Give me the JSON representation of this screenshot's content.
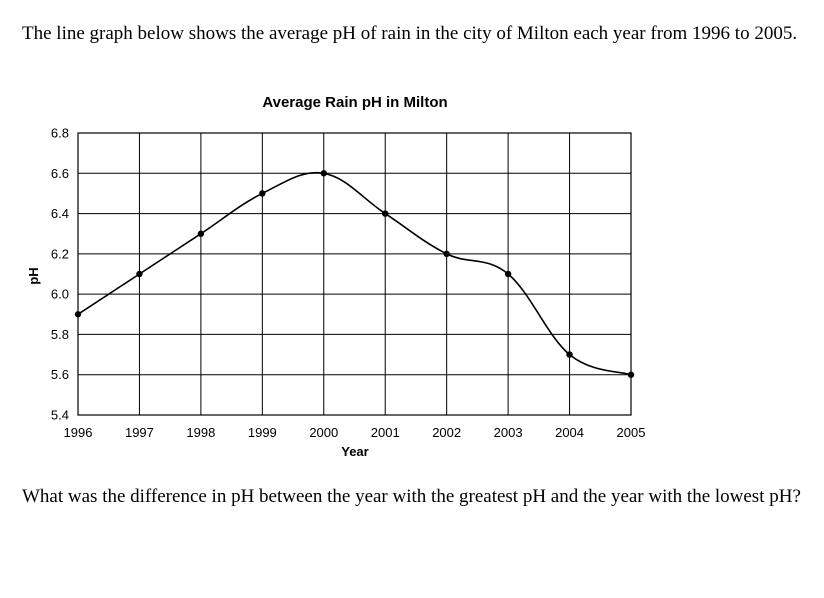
{
  "question": {
    "intro": "The line graph below shows the average pH of rain in the city of Milton each year from 1996 to 2005.",
    "prompt": "What was the difference in pH between the year with the greatest pH and the year with the lowest pH?"
  },
  "chart_data": {
    "type": "line",
    "title": "Average Rain pH in Milton",
    "xlabel": "Year",
    "ylabel": "pH",
    "x": [
      1996,
      1997,
      1998,
      1999,
      2000,
      2001,
      2002,
      2003,
      2004,
      2005
    ],
    "x_tick_labels": [
      "1996",
      "1997",
      "1998",
      "1999",
      "2000",
      "2001",
      "2002",
      "2003",
      "2004",
      "2005"
    ],
    "series": [
      {
        "name": "Average pH",
        "values": [
          5.9,
          6.1,
          6.3,
          6.5,
          6.6,
          6.4,
          6.2,
          6.1,
          5.7,
          5.6
        ]
      }
    ],
    "ylim": [
      5.4,
      6.8
    ],
    "y_ticks": [
      5.4,
      5.6,
      5.8,
      6.0,
      6.2,
      6.4,
      6.6,
      6.8
    ],
    "y_tick_labels": [
      "5.4",
      "5.6",
      "5.8",
      "6.0",
      "6.2",
      "6.4",
      "6.6",
      "6.8"
    ],
    "grid": true,
    "line_color": "#000000"
  }
}
